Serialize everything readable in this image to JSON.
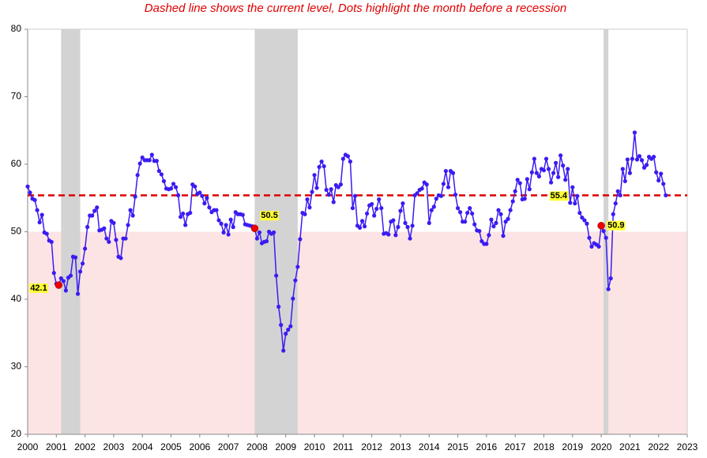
{
  "chart_data": {
    "type": "line",
    "title": "Dashed line shows the current level, Dots highlight the month before a recession",
    "xlim": [
      2000,
      2023
    ],
    "xticks": [
      2000,
      2001,
      2002,
      2003,
      2004,
      2005,
      2006,
      2007,
      2008,
      2009,
      2010,
      2011,
      2012,
      2013,
      2014,
      2015,
      2016,
      2017,
      2018,
      2019,
      2020,
      2021,
      2022,
      2023
    ],
    "ylim": [
      20,
      80
    ],
    "yticks": [
      20,
      30,
      40,
      50,
      60,
      70,
      80
    ],
    "threshold": 50,
    "threshold_color": "#fde4e4",
    "recessions": [
      [
        2001.167,
        2001.833
      ],
      [
        2007.917,
        2009.417
      ],
      [
        2020.083,
        2020.25
      ]
    ],
    "recession_color": "#d3d3d3",
    "current_level": {
      "value": 55.4,
      "color": "#dd0000"
    },
    "highlights": [
      {
        "x": 2001.083,
        "value": 42.1
      },
      {
        "x": 2007.917,
        "value": 50.5
      },
      {
        "x": 2020.0,
        "value": 50.9
      }
    ],
    "highlight_color": "#ee0000",
    "x": [
      2000,
      2000.083,
      2000.167,
      2000.25,
      2000.333,
      2000.417,
      2000.5,
      2000.583,
      2000.667,
      2000.75,
      2000.833,
      2000.917,
      2001,
      2001.083,
      2001.167,
      2001.25,
      2001.333,
      2001.417,
      2001.5,
      2001.583,
      2001.667,
      2001.75,
      2001.833,
      2001.917,
      2002,
      2002.083,
      2002.167,
      2002.25,
      2002.333,
      2002.417,
      2002.5,
      2002.583,
      2002.667,
      2002.75,
      2002.833,
      2002.917,
      2003,
      2003.083,
      2003.167,
      2003.25,
      2003.333,
      2003.417,
      2003.5,
      2003.583,
      2003.667,
      2003.75,
      2003.833,
      2003.917,
      2004,
      2004.083,
      2004.167,
      2004.25,
      2004.333,
      2004.417,
      2004.5,
      2004.583,
      2004.667,
      2004.75,
      2004.833,
      2004.917,
      2005,
      2005.083,
      2005.167,
      2005.25,
      2005.333,
      2005.417,
      2005.5,
      2005.583,
      2005.667,
      2005.75,
      2005.833,
      2005.917,
      2006,
      2006.083,
      2006.167,
      2006.25,
      2006.333,
      2006.417,
      2006.5,
      2006.583,
      2006.667,
      2006.75,
      2006.833,
      2006.917,
      2007,
      2007.083,
      2007.167,
      2007.25,
      2007.333,
      2007.417,
      2007.5,
      2007.583,
      2007.667,
      2007.75,
      2007.833,
      2007.917,
      2008,
      2008.083,
      2008.167,
      2008.25,
      2008.333,
      2008.417,
      2008.5,
      2008.583,
      2008.667,
      2008.75,
      2008.833,
      2008.917,
      2009,
      2009.083,
      2009.167,
      2009.25,
      2009.333,
      2009.417,
      2009.5,
      2009.583,
      2009.667,
      2009.75,
      2009.833,
      2009.917,
      2010,
      2010.083,
      2010.167,
      2010.25,
      2010.333,
      2010.417,
      2010.5,
      2010.583,
      2010.667,
      2010.75,
      2010.833,
      2010.917,
      2011,
      2011.083,
      2011.167,
      2011.25,
      2011.333,
      2011.417,
      2011.5,
      2011.583,
      2011.667,
      2011.75,
      2011.833,
      2011.917,
      2012,
      2012.083,
      2012.167,
      2012.25,
      2012.333,
      2012.417,
      2012.5,
      2012.583,
      2012.667,
      2012.75,
      2012.833,
      2012.917,
      2013,
      2013.083,
      2013.167,
      2013.25,
      2013.333,
      2013.417,
      2013.5,
      2013.583,
      2013.667,
      2013.75,
      2013.833,
      2013.917,
      2014,
      2014.083,
      2014.167,
      2014.25,
      2014.333,
      2014.417,
      2014.5,
      2014.583,
      2014.667,
      2014.75,
      2014.833,
      2014.917,
      2015,
      2015.083,
      2015.167,
      2015.25,
      2015.333,
      2015.417,
      2015.5,
      2015.583,
      2015.667,
      2015.75,
      2015.833,
      2015.917,
      2016,
      2016.083,
      2016.167,
      2016.25,
      2016.333,
      2016.417,
      2016.5,
      2016.583,
      2016.667,
      2016.75,
      2016.833,
      2016.917,
      2017,
      2017.083,
      2017.167,
      2017.25,
      2017.333,
      2017.417,
      2017.5,
      2017.583,
      2017.667,
      2017.75,
      2017.833,
      2017.917,
      2018,
      2018.083,
      2018.167,
      2018.25,
      2018.333,
      2018.417,
      2018.5,
      2018.583,
      2018.667,
      2018.75,
      2018.833,
      2018.917,
      2019,
      2019.083,
      2019.167,
      2019.25,
      2019.333,
      2019.417,
      2019.5,
      2019.583,
      2019.667,
      2019.75,
      2019.833,
      2019.917,
      2020,
      2020.083,
      2020.167,
      2020.25,
      2020.333,
      2020.417,
      2020.5,
      2020.583,
      2020.667,
      2020.75,
      2020.833,
      2020.917,
      2021,
      2021.083,
      2021.167,
      2021.25,
      2021.333,
      2021.417,
      2021.5,
      2021.583,
      2021.667,
      2021.75,
      2021.833,
      2021.917,
      2022,
      2022.083,
      2022.167,
      2022.25
    ],
    "series": [
      {
        "color": "#3a1cf2",
        "values": [
          56.7,
          55.8,
          54.9,
          54.7,
          53.2,
          51.4,
          52.5,
          49.9,
          49.7,
          48.7,
          48.5,
          43.9,
          42.3,
          42.1,
          43.1,
          42.7,
          41.3,
          43.2,
          43.5,
          46.3,
          46.2,
          40.8,
          44.1,
          45.3,
          47.5,
          50.7,
          52.4,
          52.4,
          53.1,
          53.6,
          50.2,
          50.3,
          50.5,
          49.0,
          48.5,
          51.6,
          51.3,
          48.8,
          46.3,
          46.1,
          49.0,
          49.0,
          51.0,
          53.2,
          52.4,
          55.2,
          58.4,
          60.1,
          61.0,
          60.6,
          60.6,
          60.6,
          61.4,
          60.5,
          60.5,
          59.0,
          58.5,
          57.5,
          56.4,
          56.3,
          56.4,
          57.1,
          56.6,
          55.4,
          52.2,
          52.7,
          51.0,
          52.6,
          52.8,
          57.0,
          56.7,
          55.6,
          55.8,
          55.3,
          54.2,
          55.0,
          53.6,
          52.9,
          53.2,
          53.2,
          51.7,
          51.2,
          49.9,
          51.0,
          49.6,
          51.8,
          50.7,
          52.9,
          52.6,
          52.6,
          52.5,
          51.1,
          51.0,
          50.9,
          50.8,
          50.5,
          49.0,
          49.9,
          48.3,
          48.5,
          48.6,
          50.0,
          49.7,
          49.9,
          43.5,
          38.9,
          36.2,
          32.4,
          34.9,
          35.5,
          36.0,
          40.1,
          42.8,
          44.8,
          48.9,
          52.8,
          52.6,
          54.8,
          53.6,
          55.9,
          58.4,
          56.5,
          59.6,
          60.4,
          59.7,
          56.2,
          55.5,
          56.3,
          54.4,
          56.9,
          56.6,
          57.0,
          60.8,
          61.4,
          61.2,
          60.4,
          53.5,
          55.3,
          50.9,
          50.6,
          51.6,
          50.8,
          52.7,
          53.9,
          54.1,
          52.4,
          53.4,
          54.8,
          53.5,
          49.7,
          49.8,
          49.6,
          51.5,
          51.7,
          49.5,
          50.7,
          53.1,
          54.2,
          51.3,
          50.7,
          49.0,
          50.9,
          55.4,
          55.7,
          56.2,
          56.4,
          57.3,
          57.0,
          51.3,
          53.2,
          53.7,
          54.9,
          55.4,
          55.3,
          57.1,
          59.0,
          56.6,
          59.0,
          58.7,
          55.5,
          53.5,
          52.9,
          51.5,
          51.5,
          52.8,
          53.5,
          52.7,
          51.1,
          50.2,
          50.1,
          48.6,
          48.2,
          48.2,
          49.5,
          51.8,
          50.8,
          51.3,
          53.2,
          52.6,
          49.4,
          51.5,
          51.9,
          53.2,
          54.5,
          56.0,
          57.7,
          57.2,
          54.8,
          54.9,
          57.8,
          56.3,
          58.8,
          60.8,
          58.7,
          58.2,
          59.3,
          59.1,
          60.8,
          59.3,
          57.3,
          58.7,
          60.2,
          58.1,
          61.3,
          59.8,
          57.7,
          59.3,
          54.3,
          56.6,
          54.2,
          55.3,
          52.8,
          52.1,
          51.7,
          51.2,
          49.1,
          47.8,
          48.3,
          48.1,
          47.8,
          50.9,
          50.1,
          49.1,
          41.5,
          43.1,
          52.6,
          54.2,
          56.0,
          55.4,
          59.3,
          57.5,
          60.7,
          58.7,
          60.8,
          64.7,
          60.7,
          61.2,
          60.6,
          59.5,
          59.9,
          61.1,
          60.8,
          61.1,
          58.8,
          57.6,
          58.6,
          57.1,
          55.4
        ]
      }
    ]
  }
}
